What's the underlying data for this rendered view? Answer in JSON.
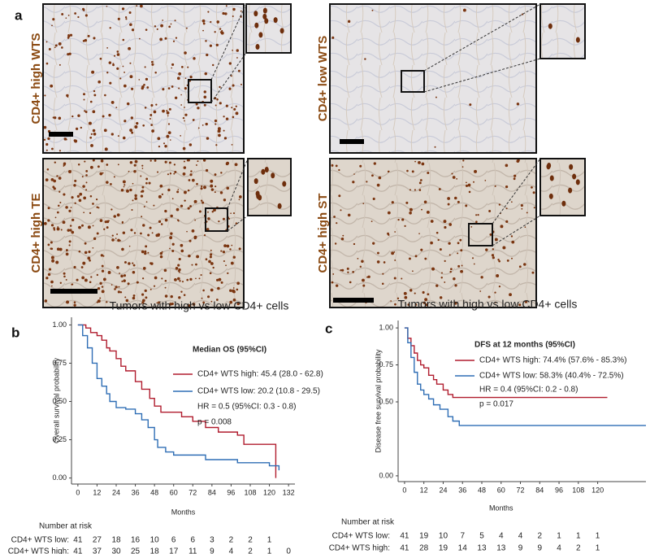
{
  "panel_labels": [
    "a",
    "b",
    "c"
  ],
  "images": [
    {
      "label": "CD4+ high WTS"
    },
    {
      "label": "CD4+ low WTS"
    },
    {
      "label": "CD4+ high TE"
    },
    {
      "label": "CD4+ high ST"
    }
  ],
  "chart_data": [
    {
      "type": "line",
      "step": true,
      "title": "Tumors with high vs low CD4+ cells",
      "ylabel": "Overall survival probability",
      "xlabel": "Months",
      "xlim": [
        -4,
        136
      ],
      "ylim": [
        -0.05,
        1.05
      ],
      "xticks": [
        0,
        12,
        24,
        36,
        48,
        60,
        72,
        84,
        96,
        108,
        120,
        132
      ],
      "yticks": [
        {
          "value": 0,
          "label": "0.00"
        },
        {
          "value": 0.25,
          "label": "0.25"
        },
        {
          "value": 0.5,
          "label": "0.50"
        },
        {
          "value": 0.75,
          "label": "0.75"
        },
        {
          "value": 1,
          "label": "1.00"
        }
      ],
      "legend_title": "Median OS (95%CI)",
      "series": [
        {
          "name": "CD4+ WTS high: 45.4 (28.0 - 62.8)",
          "color": "#b01c2e",
          "x": [
            0,
            5,
            8,
            12,
            15,
            18,
            20,
            24,
            27,
            30,
            36,
            40,
            45,
            48,
            52,
            65,
            72,
            80,
            88,
            100,
            104,
            124,
            124
          ],
          "values": [
            1,
            0.98,
            0.95,
            0.93,
            0.9,
            0.85,
            0.83,
            0.78,
            0.73,
            0.7,
            0.63,
            0.58,
            0.52,
            0.47,
            0.43,
            0.4,
            0.37,
            0.33,
            0.3,
            0.28,
            0.22,
            0.22,
            0
          ]
        },
        {
          "name": "CD4+ WTS low: 20.2 (10.8 - 29.5)",
          "color": "#2f6eb5",
          "x": [
            0,
            3,
            6,
            9,
            12,
            15,
            18,
            20,
            24,
            30,
            36,
            40,
            44,
            48,
            50,
            55,
            60,
            80,
            100,
            120,
            126,
            126
          ],
          "values": [
            1,
            0.93,
            0.85,
            0.75,
            0.65,
            0.6,
            0.55,
            0.5,
            0.46,
            0.45,
            0.42,
            0.38,
            0.33,
            0.25,
            0.2,
            0.17,
            0.15,
            0.12,
            0.1,
            0.08,
            0.08,
            0.05
          ]
        }
      ],
      "annotations": [
        "HR = 0.5 (95%CI: 0.3 - 0.8)",
        "p = 0.008"
      ],
      "risk_table": {
        "title": "Number at risk",
        "rows": [
          {
            "label": "CD4+ WTS low:",
            "values": [
              41,
              27,
              18,
              16,
              10,
              6,
              6,
              3,
              2,
              2,
              1,
              null
            ]
          },
          {
            "label": "CD4+ WTS high:",
            "values": [
              41,
              37,
              30,
              25,
              18,
              17,
              11,
              9,
              4,
              2,
              1,
              0
            ]
          }
        ]
      }
    },
    {
      "type": "line",
      "step": true,
      "title": "Tumors with high vs low CD4+ cells",
      "ylabel": "Disease free survival probability",
      "xlabel": "Months",
      "xlim": [
        -4,
        150
      ],
      "ylim": [
        -0.05,
        1.05
      ],
      "xticks": [
        0,
        12,
        24,
        36,
        48,
        60,
        72,
        84,
        96,
        108,
        120
      ],
      "yticks": [
        {
          "value": 0,
          "label": "0.00"
        },
        {
          "value": 0.5,
          "label": "0.50"
        },
        {
          "value": 0.75,
          "label": "0.75"
        },
        {
          "value": 1,
          "label": "1.00"
        }
      ],
      "legend_title": "DFS at 12 months (95%CI)",
      "series": [
        {
          "name": "CD4+ WTS high: 74.4% (57.6% - 85.3%)",
          "color": "#b01c2e",
          "x": [
            0,
            2,
            4,
            6,
            8,
            10,
            12,
            15,
            18,
            20,
            24,
            27,
            30,
            126
          ],
          "values": [
            1,
            0.93,
            0.88,
            0.83,
            0.78,
            0.75,
            0.73,
            0.68,
            0.65,
            0.62,
            0.58,
            0.55,
            0.53,
            0.53
          ]
        },
        {
          "name": "CD4+ WTS low: 58.3% (40.4% - 72.5%)",
          "color": "#2f6eb5",
          "x": [
            0,
            2,
            4,
            6,
            8,
            10,
            12,
            15,
            18,
            22,
            27,
            30,
            34,
            150
          ],
          "values": [
            1,
            0.9,
            0.8,
            0.7,
            0.62,
            0.58,
            0.55,
            0.52,
            0.48,
            0.45,
            0.4,
            0.37,
            0.34,
            0.34
          ]
        }
      ],
      "annotations": [
        "HR = 0.4 (95%CI: 0.2 - 0.8)",
        "p = 0.017"
      ],
      "risk_table": {
        "title": "Number at risk",
        "rows": [
          {
            "label": "CD4+ WTS low:",
            "values": [
              41,
              19,
              10,
              7,
              5,
              4,
              4,
              2,
              1,
              1,
              1
            ]
          },
          {
            "label": "CD4+ WTS high:",
            "values": [
              41,
              28,
              19,
              14,
              13,
              13,
              9,
              9,
              4,
              2,
              1
            ]
          }
        ]
      }
    }
  ]
}
